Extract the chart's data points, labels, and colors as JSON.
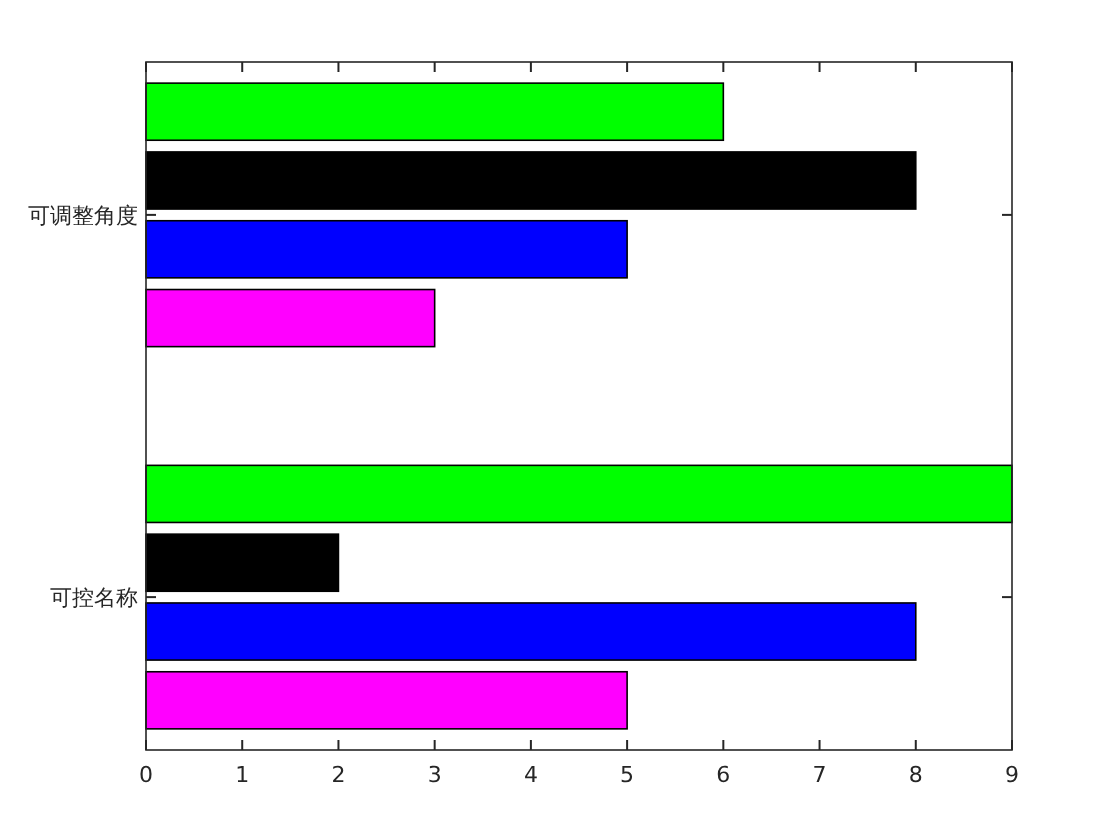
{
  "chart_data": {
    "type": "bar",
    "orientation": "horizontal",
    "categories": [
      "可调整角度",
      "可控名称"
    ],
    "series": [
      {
        "color": "#00ff00",
        "values": [
          6,
          9
        ]
      },
      {
        "color": "#000000",
        "values": [
          8,
          2
        ]
      },
      {
        "color": "#0000ff",
        "values": [
          5,
          8
        ]
      },
      {
        "color": "#ff00ff",
        "values": [
          3,
          5
        ]
      }
    ],
    "xlim": [
      0,
      9
    ],
    "xticks": [
      0,
      1,
      2,
      3,
      4,
      5,
      6,
      7,
      8,
      9
    ],
    "grid": false
  }
}
